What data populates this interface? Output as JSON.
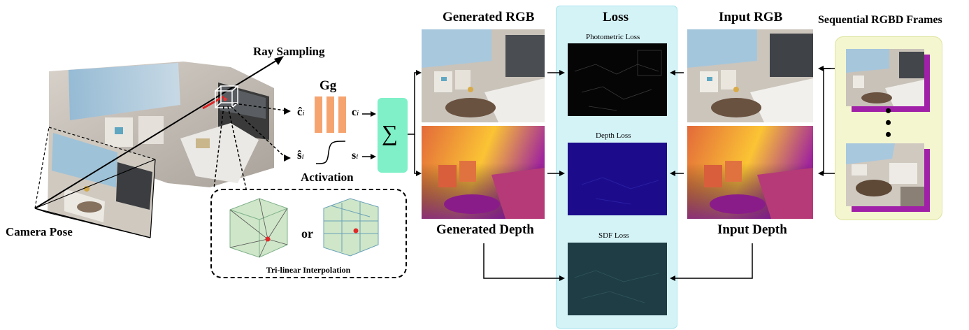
{
  "labels": {
    "ray_sampling": "Ray Sampling",
    "camera_pose": "Camera Pose",
    "gg": "Gg",
    "activation": "Activation",
    "c_hat": "ĉ",
    "c": "c",
    "s_hat": "ŝ",
    "s": "s",
    "subscript": "i",
    "sum": "∑",
    "or": "or",
    "trilinear": "Tri-linear Interpolation",
    "generated_rgb": "Generated RGB",
    "generated_depth": "Generated Depth",
    "loss": "Loss",
    "photometric_loss": "Photometric Loss",
    "depth_loss": "Depth Loss",
    "sdf_loss": "SDF Loss",
    "input_rgb": "Input RGB",
    "input_depth": "Input Depth",
    "sequential_frames": "Sequential RGBD Frames"
  },
  "colors": {
    "gg_bars": "#f6a46f",
    "sum_box": "#7ff0c8",
    "loss_panel": "#d4f3f7",
    "loss_panel_border": "#a8e4ee",
    "frames_panel": "#f4f6cf",
    "frames_panel_border": "#dfe3a0",
    "frame_shadow": "#a020a8"
  }
}
